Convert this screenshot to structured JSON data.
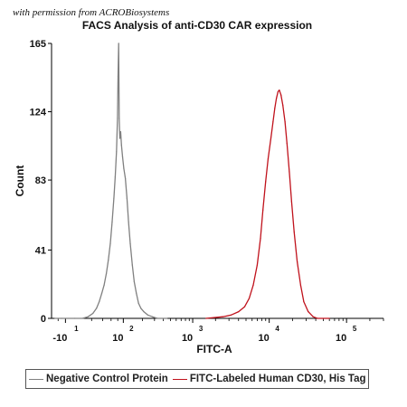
{
  "credit": "with permission from ACROBiosystems",
  "chart_data": {
    "type": "line",
    "title": "FACS Analysis of anti-CD30 CAR expression",
    "xlabel": "FITC-A",
    "ylabel": "Count",
    "x_scale": "log",
    "xlim": [
      -31,
      300000
    ],
    "ylim": [
      0,
      165
    ],
    "y_ticks": [
      0,
      41,
      83,
      124,
      165
    ],
    "x_tick_labels": [
      {
        "base": "-10",
        "exp": "1",
        "value": -10
      },
      {
        "base": "10",
        "exp": "2",
        "value": 100
      },
      {
        "base": "10",
        "exp": "3",
        "value": 1000
      },
      {
        "base": "10",
        "exp": "4",
        "value": 10000
      },
      {
        "base": "10",
        "exp": "5",
        "value": 100000
      }
    ],
    "grid": false,
    "legend_position": "bottom",
    "series": [
      {
        "name": "Negative Control Protein",
        "color": "#808080",
        "points": [
          [
            -25,
            0
          ],
          [
            -15,
            0
          ],
          [
            0,
            0
          ],
          [
            8,
            0
          ],
          [
            15,
            1
          ],
          [
            22,
            3
          ],
          [
            28,
            6
          ],
          [
            33,
            10
          ],
          [
            38,
            15
          ],
          [
            43,
            20
          ],
          [
            48,
            27
          ],
          [
            53,
            35
          ],
          [
            58,
            45
          ],
          [
            63,
            58
          ],
          [
            68,
            72
          ],
          [
            72,
            85
          ],
          [
            76,
            100
          ],
          [
            79,
            120
          ],
          [
            81,
            145
          ],
          [
            83,
            165
          ],
          [
            85,
            120
          ],
          [
            87,
            108
          ],
          [
            90,
            112
          ],
          [
            93,
            104
          ],
          [
            97,
            97
          ],
          [
            102,
            90
          ],
          [
            108,
            84
          ],
          [
            115,
            72
          ],
          [
            122,
            58
          ],
          [
            130,
            45
          ],
          [
            140,
            32
          ],
          [
            150,
            22
          ],
          [
            162,
            15
          ],
          [
            175,
            9
          ],
          [
            190,
            6
          ],
          [
            210,
            4
          ],
          [
            240,
            2
          ],
          [
            280,
            1
          ],
          [
            330,
            0
          ],
          [
            450,
            0
          ]
        ]
      },
      {
        "name": "FITC-Labeled Human CD30, His Tag",
        "color": "#c0121c",
        "points": [
          [
            1500,
            0
          ],
          [
            2500,
            1
          ],
          [
            3200,
            2
          ],
          [
            4000,
            4
          ],
          [
            4800,
            7
          ],
          [
            5500,
            12
          ],
          [
            6200,
            20
          ],
          [
            7000,
            32
          ],
          [
            7700,
            48
          ],
          [
            8300,
            65
          ],
          [
            9000,
            82
          ],
          [
            9700,
            96
          ],
          [
            10500,
            108
          ],
          [
            11200,
            118
          ],
          [
            11800,
            126
          ],
          [
            12400,
            132
          ],
          [
            13000,
            136
          ],
          [
            13500,
            137
          ],
          [
            14200,
            134
          ],
          [
            15000,
            128
          ],
          [
            16000,
            118
          ],
          [
            17000,
            105
          ],
          [
            18200,
            88
          ],
          [
            19500,
            70
          ],
          [
            21000,
            52
          ],
          [
            23000,
            34
          ],
          [
            25500,
            20
          ],
          [
            28000,
            10
          ],
          [
            32000,
            4
          ],
          [
            37000,
            1
          ],
          [
            42000,
            0
          ],
          [
            60000,
            0
          ]
        ]
      }
    ]
  }
}
